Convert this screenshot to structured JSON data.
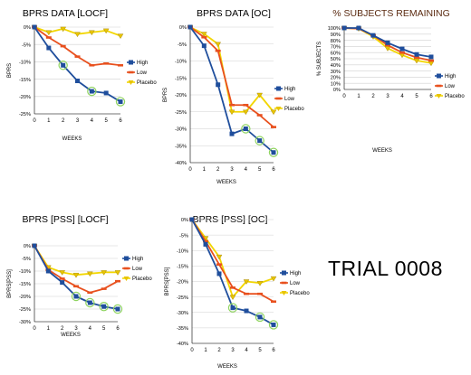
{
  "colors": {
    "high": "#1f4e9c",
    "low": "#e8501e",
    "placebo": "#f2d600",
    "placebo_marker": "#e8c400",
    "title": "#000000",
    "title_alt": "#5a2a10",
    "grid": "#d0d0d0",
    "highlight": "#8fd45f"
  },
  "trial_label": "TRIAL 0008",
  "chart_data": [
    {
      "type": "line",
      "title": "BPRS DATA [LOCF]",
      "xlabel": "WEEKS",
      "ylabel": "BPRS",
      "x": [
        0,
        1,
        2,
        3,
        4,
        5,
        6
      ],
      "xticks": [
        "0",
        "1",
        "2",
        "3",
        "4",
        "5",
        "6"
      ],
      "ylim": [
        -25,
        0
      ],
      "yticks": [
        0,
        -5,
        -10,
        -15,
        -20,
        -25
      ],
      "ytick_labels": [
        "0%",
        "-5%",
        "-10%",
        "-15%",
        "-20%",
        "-25%"
      ],
      "grid": true,
      "legend": "right",
      "series": [
        {
          "name": "High",
          "key": "high",
          "values": [
            0,
            -6,
            -11,
            -15.5,
            -18.5,
            -19,
            -21.5
          ],
          "highlight": [
            2,
            4,
            6
          ]
        },
        {
          "name": "Low",
          "key": "low",
          "values": [
            0,
            -3,
            -5.5,
            -8.5,
            -11,
            -10.5,
            -11
          ],
          "highlight": []
        },
        {
          "name": "Placebo",
          "key": "placebo",
          "values": [
            0,
            -1.5,
            -0.5,
            -2,
            -1.5,
            -1,
            -2.5
          ],
          "highlight": []
        }
      ]
    },
    {
      "type": "line",
      "title": "BPRS DATA [OC]",
      "xlabel": "WEEKS",
      "ylabel": "BPRS",
      "x": [
        0,
        1,
        2,
        3,
        4,
        5,
        6
      ],
      "xticks": [
        "0",
        "1",
        "2",
        "3",
        "4",
        "5",
        "6"
      ],
      "ylim": [
        -40,
        0
      ],
      "yticks": [
        0,
        -5,
        -10,
        -15,
        -20,
        -25,
        -30,
        -35,
        -40
      ],
      "ytick_labels": [
        "0%",
        "-5%",
        "-10%",
        "-15%",
        "-20%",
        "-25%",
        "-30%",
        "-35%",
        "-40%"
      ],
      "grid": true,
      "legend": "right",
      "series": [
        {
          "name": "High",
          "key": "high",
          "values": [
            0,
            -5.5,
            -17,
            -31.5,
            -30,
            -33.5,
            -37
          ],
          "highlight": [
            4,
            5,
            6
          ]
        },
        {
          "name": "Low",
          "key": "low",
          "values": [
            0,
            -3,
            -7,
            -23,
            -23,
            -26,
            -29.5
          ],
          "highlight": []
        },
        {
          "name": "Placebo",
          "key": "placebo",
          "values": [
            0,
            -2,
            -5,
            -25,
            -25,
            -20,
            -25
          ],
          "highlight": []
        }
      ]
    },
    {
      "type": "line",
      "title": "% SUBJECTS REMAINING",
      "title_color": "title_alt",
      "xlabel": "WEEKS",
      "ylabel": "% SUBJECTS",
      "x": [
        0,
        1,
        2,
        3,
        4,
        5,
        6
      ],
      "xticks": [
        "0",
        "1",
        "2",
        "3",
        "4",
        "5",
        "6"
      ],
      "ylim": [
        0,
        100
      ],
      "yticks": [
        100,
        90,
        80,
        70,
        60,
        50,
        40,
        30,
        20,
        10,
        0
      ],
      "ytick_labels": [
        "100%",
        "90%",
        "80%",
        "70%",
        "60%",
        "50%",
        "40%",
        "30%",
        "20%",
        "10%",
        "0%"
      ],
      "grid": true,
      "legend": "right",
      "series": [
        {
          "name": "High",
          "key": "high",
          "values": [
            100,
            100,
            88,
            76,
            66,
            57,
            53
          ],
          "highlight": []
        },
        {
          "name": "Low",
          "key": "low",
          "values": [
            100,
            99,
            88,
            72,
            60,
            52,
            47
          ],
          "highlight": []
        },
        {
          "name": "Placebo",
          "key": "placebo",
          "values": [
            100,
            99,
            86,
            67,
            56,
            47,
            43
          ],
          "highlight": []
        }
      ]
    },
    {
      "type": "line",
      "title": "BPRS [PSS] [LOCF]",
      "xlabel": "WEEKS",
      "ylabel": "BPRS[PSS]",
      "x": [
        0,
        1,
        2,
        3,
        4,
        5,
        6
      ],
      "xticks": [
        "0",
        "1",
        "2",
        "3",
        "4",
        "5",
        "6"
      ],
      "ylim": [
        -30,
        0
      ],
      "yticks": [
        0,
        -5,
        -10,
        -15,
        -20,
        -25,
        -30
      ],
      "ytick_labels": [
        "0%",
        "-5%",
        "-10%",
        "-15%",
        "-20%",
        "-25%",
        "-30%"
      ],
      "grid": true,
      "legend": "right",
      "series": [
        {
          "name": "High",
          "key": "high",
          "values": [
            0,
            -10,
            -14.5,
            -20,
            -22.5,
            -24,
            -25
          ],
          "highlight": [
            3,
            4,
            5,
            6
          ]
        },
        {
          "name": "Low",
          "key": "low",
          "values": [
            0,
            -9.5,
            -13,
            -16,
            -18.5,
            -17,
            -14
          ],
          "highlight": []
        },
        {
          "name": "Placebo",
          "key": "placebo",
          "values": [
            0,
            -8.5,
            -10.5,
            -11.5,
            -11,
            -10.5,
            -10.5
          ],
          "highlight": []
        }
      ]
    },
    {
      "type": "line",
      "title": "BPRS [PSS] [OC]",
      "xlabel": "WEEKS",
      "ylabel": "BPRS[PSS]",
      "x": [
        0,
        1,
        2,
        3,
        4,
        5,
        6
      ],
      "xticks": [
        "0",
        "1",
        "2",
        "3",
        "4",
        "5",
        "6"
      ],
      "ylim": [
        -40,
        0
      ],
      "yticks": [
        0,
        -5,
        -10,
        -15,
        -20,
        -25,
        -30,
        -35,
        -40
      ],
      "ytick_labels": [
        "0%",
        "-5%",
        "-10%",
        "-15%",
        "-20%",
        "-25%",
        "-30%",
        "-35%",
        "-40%"
      ],
      "grid": true,
      "legend": "right",
      "series": [
        {
          "name": "High",
          "key": "high",
          "values": [
            0,
            -8,
            -17.5,
            -28.5,
            -29.5,
            -31.5,
            -34
          ],
          "highlight": [
            3,
            5,
            6
          ]
        },
        {
          "name": "Low",
          "key": "low",
          "values": [
            0,
            -7,
            -14.5,
            -22,
            -24,
            -24,
            -26.5
          ],
          "highlight": []
        },
        {
          "name": "Placebo",
          "key": "placebo",
          "values": [
            0,
            -6,
            -12,
            -25,
            -20,
            -20.5,
            -19
          ],
          "highlight": []
        }
      ]
    }
  ]
}
